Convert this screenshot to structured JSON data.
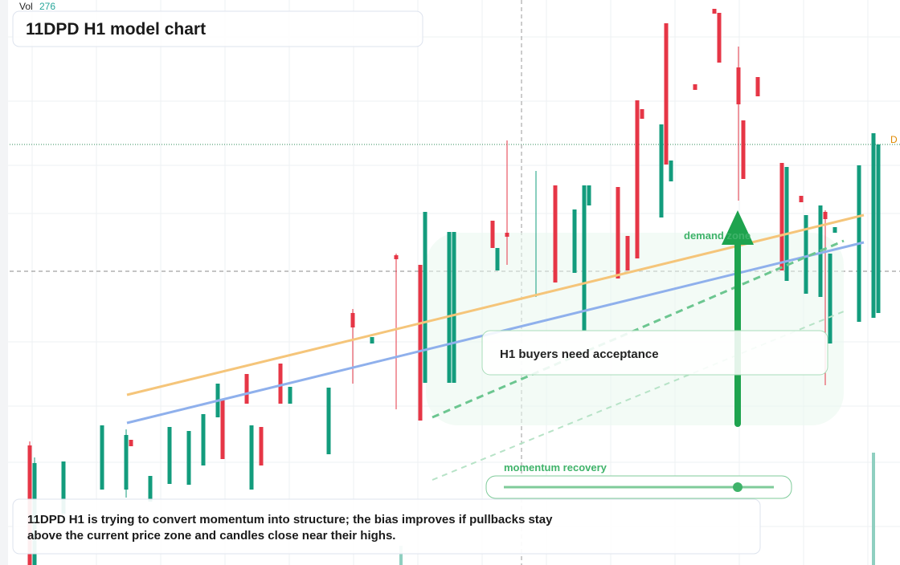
{
  "header": {
    "volume_label": "Vol",
    "volume_value": "276",
    "title": "11DPD H1 model chart"
  },
  "price_tag": "D",
  "annotations": {
    "zone": "demand zone",
    "callout": "H1 buyers need acceptance",
    "slider": "momentum recovery"
  },
  "caption": {
    "line1": "11DPD H1 is trying to convert momentum into structure; the bias improves if pullbacks stay",
    "line2": "above the current price zone and candles close near their highs."
  }
}
